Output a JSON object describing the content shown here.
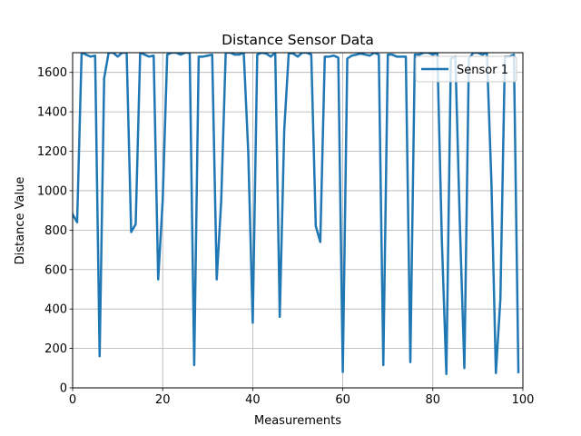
{
  "chart_data": {
    "type": "line",
    "title": "Distance Sensor Data",
    "xlabel": "Measurements",
    "ylabel": "Distance Value",
    "xlim": [
      0,
      100
    ],
    "ylim": [
      0,
      1700
    ],
    "xticks": [
      0,
      20,
      40,
      60,
      80,
      100
    ],
    "yticks": [
      0,
      200,
      400,
      600,
      800,
      1000,
      1200,
      1400,
      1600
    ],
    "grid": true,
    "legend_position": "upper right",
    "series": [
      {
        "name": "Sensor 1",
        "color": "#1f77b4",
        "x": [
          0,
          1,
          2,
          3,
          4,
          5,
          6,
          7,
          8,
          9,
          10,
          11,
          12,
          13,
          14,
          15,
          16,
          17,
          18,
          19,
          20,
          21,
          22,
          23,
          24,
          25,
          26,
          27,
          28,
          29,
          30,
          31,
          32,
          33,
          34,
          35,
          36,
          37,
          38,
          39,
          40,
          41,
          42,
          43,
          44,
          45,
          46,
          47,
          48,
          49,
          50,
          51,
          52,
          53,
          54,
          55,
          56,
          57,
          58,
          59,
          60,
          61,
          62,
          63,
          64,
          65,
          66,
          67,
          68,
          69,
          70,
          71,
          72,
          73,
          74,
          75,
          76,
          77,
          78,
          79,
          80,
          81,
          82,
          83,
          84,
          85,
          86,
          87,
          88,
          89,
          90,
          91,
          92,
          93,
          94,
          95,
          96,
          97,
          98,
          99
        ],
        "values": [
          880,
          840,
          1700,
          1690,
          1680,
          1685,
          160,
          1570,
          1700,
          1700,
          1680,
          1700,
          1700,
          790,
          830,
          1700,
          1690,
          1680,
          1685,
          550,
          950,
          1690,
          1700,
          1700,
          1690,
          1700,
          1700,
          115,
          1680,
          1680,
          1685,
          1690,
          550,
          950,
          1700,
          1700,
          1690,
          1690,
          1700,
          1200,
          330,
          1690,
          1700,
          1695,
          1680,
          1700,
          360,
          1310,
          1700,
          1695,
          1680,
          1700,
          1700,
          1690,
          820,
          740,
          1680,
          1680,
          1685,
          1675,
          80,
          1670,
          1685,
          1690,
          1695,
          1690,
          1685,
          1700,
          1690,
          115,
          1690,
          1690,
          1680,
          1680,
          1680,
          130,
          1690,
          1690,
          1700,
          1700,
          1690,
          1700,
          750,
          70,
          1670,
          1680,
          830,
          100,
          1670,
          1700,
          1700,
          1690,
          1700,
          1050,
          75,
          450,
          1680,
          1680,
          1690,
          80
        ]
      }
    ]
  }
}
